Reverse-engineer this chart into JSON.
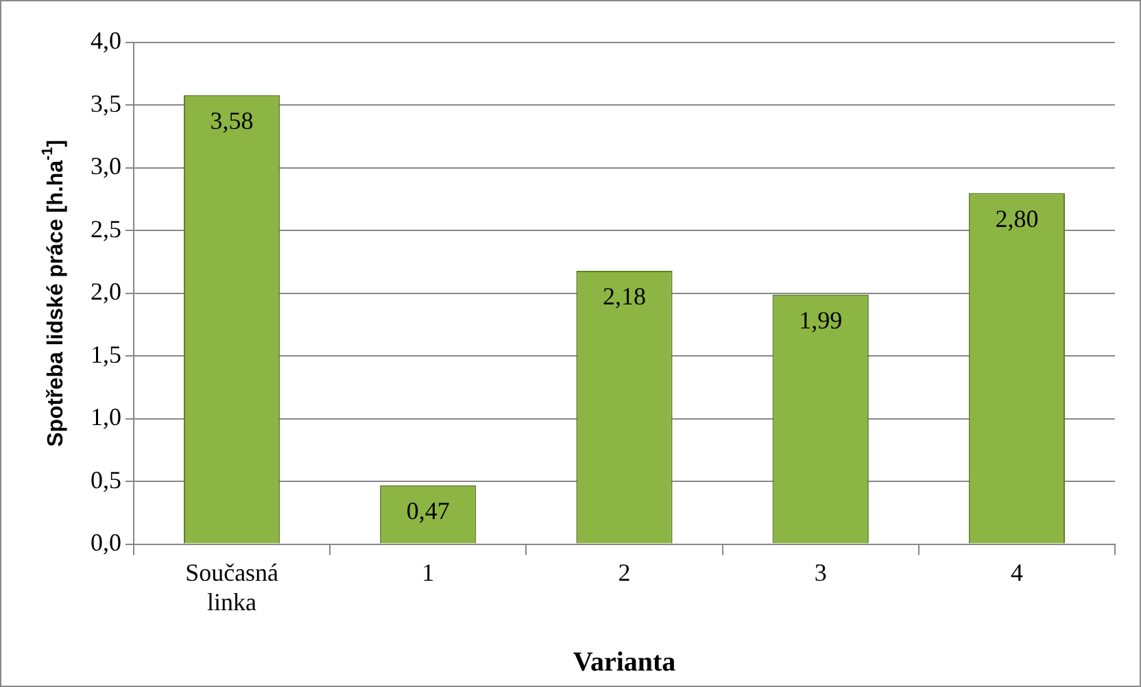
{
  "chart_data": {
    "type": "bar",
    "xlabel": "Varianta",
    "ylabel": "Spotřeba lidské práce [h.ha$^{-1}$]",
    "categories": [
      "Současná linka",
      "1",
      "2",
      "3",
      "4"
    ],
    "values": [
      3.58,
      0.47,
      2.18,
      1.99,
      2.8
    ],
    "value_labels": [
      "3,58",
      "0,47",
      "2,18",
      "1,99",
      "2,80"
    ],
    "color": "#8db543",
    "ylim": [
      0,
      4
    ],
    "yticks": [
      {
        "value": 0,
        "label": "0,0"
      },
      {
        "value": 0.5,
        "label": "0,5"
      },
      {
        "value": 1,
        "label": "1,0"
      },
      {
        "value": 1.5,
        "label": "1,5"
      },
      {
        "value": 2,
        "label": "2,0"
      },
      {
        "value": 2.5,
        "label": "2,5"
      },
      {
        "value": 3,
        "label": "3,0"
      },
      {
        "value": 3.5,
        "label": "3,5"
      },
      {
        "value": 4,
        "label": "4,0"
      }
    ],
    "grid": "y",
    "legend": false
  }
}
